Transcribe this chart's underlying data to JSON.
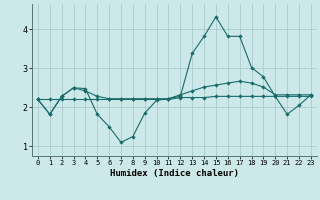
{
  "xlabel": "Humidex (Indice chaleur)",
  "background_color": "#cce8e8",
  "grid_color": "#aacccc",
  "line_color": "#1a6b6b",
  "x": [
    0,
    1,
    2,
    3,
    4,
    5,
    6,
    7,
    8,
    9,
    10,
    11,
    12,
    13,
    14,
    15,
    16,
    17,
    18,
    19,
    20,
    21,
    22,
    23
  ],
  "line1": [
    2.2,
    1.82,
    2.28,
    2.5,
    2.48,
    1.82,
    1.5,
    1.1,
    1.25,
    1.85,
    2.18,
    2.22,
    2.32,
    2.42,
    2.52,
    2.57,
    2.62,
    2.67,
    2.62,
    2.52,
    2.32,
    2.32,
    2.32,
    2.32
  ],
  "line2": [
    2.2,
    1.82,
    2.28,
    2.5,
    2.42,
    2.28,
    2.22,
    2.22,
    2.22,
    2.22,
    2.22,
    2.22,
    2.28,
    3.38,
    3.82,
    4.32,
    3.82,
    3.82,
    3.02,
    2.78,
    2.28,
    1.82,
    2.05,
    2.32
  ],
  "line3": [
    2.2,
    2.2,
    2.2,
    2.2,
    2.2,
    2.2,
    2.2,
    2.2,
    2.2,
    2.2,
    2.2,
    2.2,
    2.25,
    2.25,
    2.25,
    2.28,
    2.28,
    2.28,
    2.28,
    2.28,
    2.28,
    2.28,
    2.28,
    2.28
  ],
  "ylim": [
    0.75,
    4.65
  ],
  "yticks": [
    1,
    2,
    3,
    4
  ],
  "xticks": [
    0,
    1,
    2,
    3,
    4,
    5,
    6,
    7,
    8,
    9,
    10,
    11,
    12,
    13,
    14,
    15,
    16,
    17,
    18,
    19,
    20,
    21,
    22,
    23
  ]
}
